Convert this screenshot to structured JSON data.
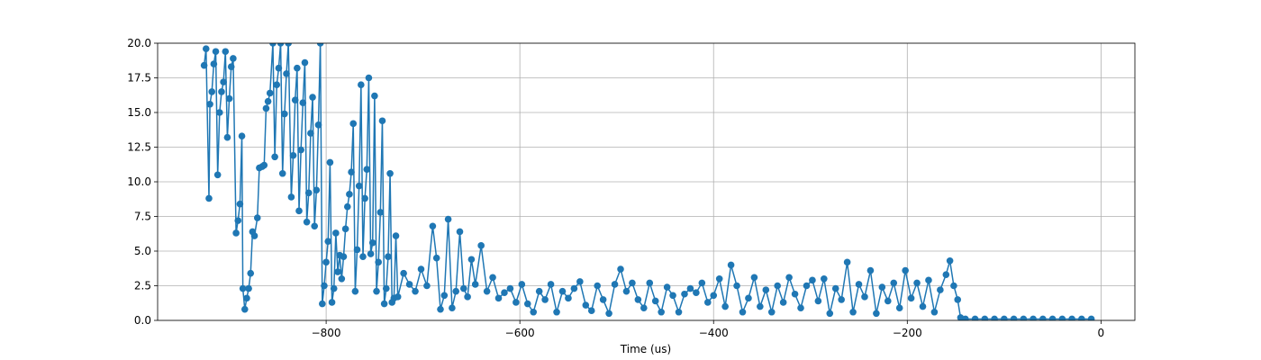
{
  "chart_data": {
    "type": "line",
    "xlabel": "Time (us)",
    "xlim": [
      -974,
      35
    ],
    "ylim": [
      0,
      20
    ],
    "xticks": [
      {
        "value": -800,
        "label": "−800"
      },
      {
        "value": -600,
        "label": "−600"
      },
      {
        "value": -400,
        "label": "−400"
      },
      {
        "value": -200,
        "label": "−200"
      },
      0
    ],
    "yticks": [
      {
        "value": 0,
        "label": "0.0"
      },
      2.5,
      {
        "value": 5,
        "label": "5.0"
      },
      7.5,
      {
        "value": 10,
        "label": "10.0"
      },
      12.5,
      {
        "value": 15,
        "label": "15.0"
      },
      17.5,
      {
        "value": 20,
        "label": "20.0"
      }
    ],
    "grid": true,
    "marker": true,
    "color": "#1f77b4",
    "x": [
      -926,
      -924,
      -921,
      -920,
      -918,
      -916,
      -914,
      -912,
      -910,
      -908,
      -906,
      -904,
      -902,
      -900,
      -898,
      -896,
      -893,
      -891,
      -889,
      -887,
      -886,
      -884,
      -882,
      -880,
      -878,
      -876,
      -874,
      -871,
      -869,
      -866,
      -864,
      -862,
      -860,
      -858,
      -855,
      -853,
      -851,
      -849,
      -847,
      -845,
      -843,
      -841,
      -839,
      -836,
      -834,
      -832,
      -830,
      -828,
      -826,
      -824,
      -822,
      -820,
      -818,
      -816,
      -814,
      -812,
      -810,
      -808,
      -806,
      -804,
      -802,
      -800,
      -798,
      -796,
      -794,
      -792,
      -790,
      -788,
      -786,
      -784,
      -782,
      -780,
      -778,
      -776,
      -774,
      -772,
      -770,
      -768,
      -766,
      -764,
      -762,
      -760,
      -758,
      -756,
      -754,
      -752,
      -750,
      -748,
      -746,
      -744,
      -742,
      -740,
      -738,
      -736,
      -734,
      -732,
      -730,
      -728,
      -726,
      -720,
      -714,
      -708,
      -702,
      -696,
      -690,
      -686,
      -682,
      -678,
      -674,
      -670,
      -666,
      -662,
      -658,
      -654,
      -650,
      -646,
      -640,
      -634,
      -628,
      -622,
      -616,
      -610,
      -604,
      -598,
      -592,
      -586,
      -580,
      -574,
      -568,
      -562,
      -556,
      -550,
      -544,
      -538,
      -532,
      -526,
      -520,
      -514,
      -508,
      -502,
      -496,
      -490,
      -484,
      -478,
      -472,
      -466,
      -460,
      -454,
      -448,
      -442,
      -436,
      -430,
      -424,
      -418,
      -412,
      -406,
      -400,
      -394,
      -388,
      -382,
      -376,
      -370,
      -364,
      -358,
      -352,
      -346,
      -340,
      -334,
      -328,
      -322,
      -316,
      -310,
      -304,
      -298,
      -292,
      -286,
      -280,
      -274,
      -268,
      -262,
      -256,
      -250,
      -244,
      -238,
      -232,
      -226,
      -220,
      -214,
      -208,
      -202,
      -196,
      -190,
      -184,
      -178,
      -172,
      -166,
      -160,
      -156,
      -152,
      -148,
      -145,
      -140,
      -130,
      -120,
      -110,
      -100,
      -90,
      -80,
      -70,
      -60,
      -50,
      -40,
      -30,
      -20,
      -10
    ],
    "values": [
      18.4,
      19.6,
      8.8,
      15.6,
      16.5,
      18.5,
      19.4,
      10.5,
      15,
      16.5,
      17.2,
      19.4,
      13.2,
      16,
      18.3,
      18.9,
      6.3,
      7.2,
      8.4,
      13.3,
      2.3,
      0.8,
      1.6,
      2.3,
      3.4,
      6.4,
      6.1,
      7.4,
      11,
      11.1,
      11.2,
      15.3,
      15.8,
      16.4,
      20,
      11.8,
      17,
      18.2,
      20,
      10.6,
      14.9,
      17.8,
      20,
      8.9,
      11.9,
      15.9,
      18.2,
      7.9,
      12.3,
      15.7,
      18.6,
      7.1,
      9.2,
      13.5,
      16.1,
      6.8,
      9.4,
      14.1,
      20,
      1.2,
      2.5,
      4.2,
      5.7,
      11.4,
      1.3,
      2.3,
      6.3,
      3.5,
      4.7,
      3,
      4.6,
      6.6,
      8.2,
      9.1,
      10.7,
      14.2,
      2.1,
      5.1,
      9.7,
      17,
      4.6,
      8.8,
      10.9,
      17.5,
      4.8,
      5.6,
      16.2,
      2.1,
      4.2,
      7.8,
      14.4,
      1.2,
      2.3,
      4.6,
      10.6,
      1.3,
      1.6,
      6.1,
      1.7,
      3.4,
      2.6,
      2.1,
      3.7,
      2.5,
      6.8,
      4.5,
      0.8,
      1.8,
      7.3,
      0.9,
      2.1,
      6.4,
      2.3,
      1.7,
      4.4,
      2.6,
      5.4,
      2.1,
      3.1,
      1.6,
      2.0,
      2.3,
      1.3,
      2.6,
      1.2,
      0.6,
      2.1,
      1.5,
      2.6,
      0.6,
      2.1,
      1.6,
      2.3,
      2.8,
      1.1,
      0.7,
      2.5,
      1.5,
      0.5,
      2.6,
      3.7,
      2.1,
      2.7,
      1.5,
      0.9,
      2.7,
      1.4,
      0.6,
      2.4,
      1.8,
      0.6,
      1.9,
      2.3,
      2.0,
      2.7,
      1.3,
      1.8,
      3.0,
      1.0,
      4.0,
      2.5,
      0.6,
      1.6,
      3.1,
      1.0,
      2.2,
      0.6,
      2.5,
      1.3,
      3.1,
      1.9,
      0.9,
      2.5,
      2.9,
      1.4,
      3.0,
      0.5,
      2.3,
      1.5,
      4.2,
      0.6,
      2.6,
      1.7,
      3.6,
      0.5,
      2.4,
      1.4,
      2.7,
      0.9,
      3.6,
      1.6,
      2.7,
      1.0,
      2.9,
      0.6,
      2.2,
      3.3,
      4.3,
      2.5,
      1.5,
      0.2,
      0.1,
      0.1,
      0.1,
      0.1,
      0.1,
      0.1,
      0.1,
      0.1,
      0.1,
      0.1,
      0.1,
      0.1,
      0.1,
      0.1
    ]
  }
}
